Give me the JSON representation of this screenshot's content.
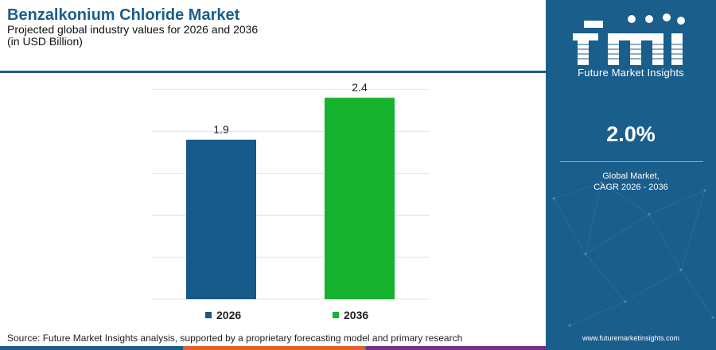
{
  "header": {
    "title": "Benzalkonium Chloride Market",
    "subtitle": "Projected global industry values for 2026 and 2036",
    "unit": "(in USD Billion)"
  },
  "chart_data": {
    "type": "bar",
    "categories": [
      "2026",
      "2036"
    ],
    "values": [
      1.9,
      2.4
    ],
    "data_labels": [
      "1.9",
      "2.4"
    ],
    "colors": [
      "#165a8a",
      "#17b32e"
    ],
    "ylim": [
      0,
      2.6
    ],
    "grid": true,
    "legend": "bottom",
    "title": "",
    "xlabel": "",
    "ylabel": ""
  },
  "legend": {
    "items": [
      {
        "label": "2026",
        "color": "#165a8a"
      },
      {
        "label": "2036",
        "color": "#17b32e"
      }
    ]
  },
  "source": "Source: Future Market Insights analysis, supported by a proprietary forecasting model and primary research",
  "footer_colors": [
    "#1a5e8c",
    "#e2602a",
    "#17b32e",
    "#7a2e8c"
  ],
  "panel": {
    "brand": "Future Market Insights",
    "cagr_value": "2.0%",
    "cagr_label_line1": "Global Market,",
    "cagr_label_line2": "CAGR 2026 - 2036",
    "website": "www.futuremarketinsights.com",
    "background": "#1a5e8c"
  }
}
